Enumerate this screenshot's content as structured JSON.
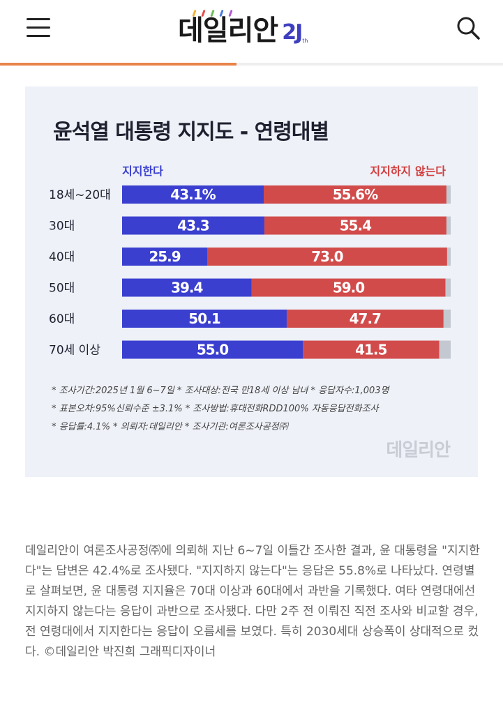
{
  "header": {
    "logo_text": "데일리안",
    "logo_badge": "2J",
    "logo_badge_sup": "th",
    "logo_dot_colors": [
      "#f2b233",
      "#e94b4b",
      "#6bbf59",
      "#4a7de0",
      "#b25ad6"
    ],
    "reading_progress": 0.47,
    "accent_color": "#e8834a"
  },
  "chart_data": {
    "type": "bar",
    "stacked": true,
    "orientation": "horizontal",
    "title": "윤석열 대통령 지지도 - 연령대별",
    "categories": [
      "18세~20대",
      "30대",
      "40대",
      "50대",
      "60대",
      "70세 이상"
    ],
    "series": [
      {
        "name": "지지한다",
        "color": "#3a3fd0",
        "values": [
          43.1,
          43.3,
          25.9,
          39.4,
          50.1,
          55.0
        ],
        "labels": [
          "43.1%",
          "43.3",
          "25.9",
          "39.4",
          "50.1",
          "55.0"
        ]
      },
      {
        "name": "지지하지 않는다",
        "color": "#d24b4b",
        "values": [
          55.6,
          55.4,
          73.0,
          59.0,
          47.7,
          41.5
        ],
        "labels": [
          "55.6%",
          "55.4",
          "73.0",
          "59.0",
          "47.7",
          "41.5"
        ]
      }
    ],
    "remainder_color": "#c4c8d0",
    "xlim": [
      0,
      100
    ],
    "legend": "top",
    "grid": false
  },
  "notes": {
    "line1": "* 조사기간:2025년 1월 6~7일  * 조사대상:전국 만18세 이상 남녀  * 응답자수:1,003명",
    "line2": "* 표본오차:95%신뢰수준 ±3.1%  * 조사방법:휴대전화RDD100% 자동응답전화조사",
    "line3": "* 응답률:4.1%  * 의뢰자:데일리안  * 조사기관:여론조사공정㈜"
  },
  "watermark": "데일리안",
  "article": {
    "body": "데일리안이 여론조사공정㈜에 의뢰해 지난 6~7일 이틀간 조사한 결과, 윤 대통령을 \"지지한다\"는 답변은 42.4%로 조사됐다. \"지지하지 않는다\"는 응답은 55.8%로 나타났다. 연령별로 살펴보면, 윤 대통령 지지율은 70대 이상과 60대에서 과반을 기록했다. 여타 연령대에선 지지하지 않는다는 응답이 과반으로 조사됐다. 다만 2주 전 이뤄진 직전 조사와 비교할 경우, 전 연령대에서 지지한다는 응답이 오름세를 보였다. 특히 2030세대 상승폭이 상대적으로 컸다. ©데일리안 박진희 그래픽디자이너"
  }
}
